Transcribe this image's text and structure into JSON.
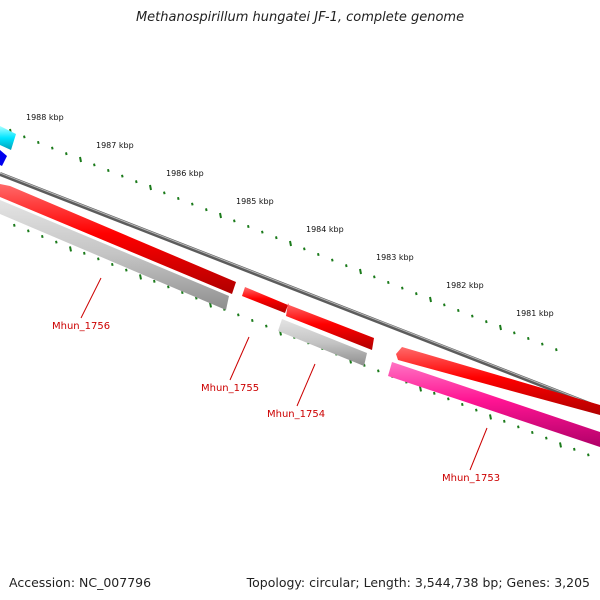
{
  "title": "Methanospirillum hungatei JF-1, complete genome",
  "footer": {
    "accession": "Accession: NC_007796",
    "summary": "Topology: circular; Length: 3,544,738 bp; Genes: 3,205"
  },
  "colors": {
    "backbone": "#808080",
    "forward_cds": "#ff0000",
    "reverse_cds": "#c0c0c0",
    "reverse_cds_pink": "#ff1493",
    "neighbor_cyan": "#00e5ff",
    "neighbor_blue": "#0000ee",
    "tick": "#1a7a1a",
    "gene_label": "#cc0000"
  },
  "scale_ticks": [
    {
      "label": "1988 kbp"
    },
    {
      "label": "1987 kbp"
    },
    {
      "label": "1986 kbp"
    },
    {
      "label": "1985 kbp"
    },
    {
      "label": "1984 kbp"
    },
    {
      "label": "1983 kbp"
    },
    {
      "label": "1982 kbp"
    },
    {
      "label": "1981 kbp"
    }
  ],
  "gene_labels": [
    {
      "label": "Mhun_1756"
    },
    {
      "label": "Mhun_1755"
    },
    {
      "label": "Mhun_1754"
    },
    {
      "label": "Mhun_1753"
    }
  ]
}
